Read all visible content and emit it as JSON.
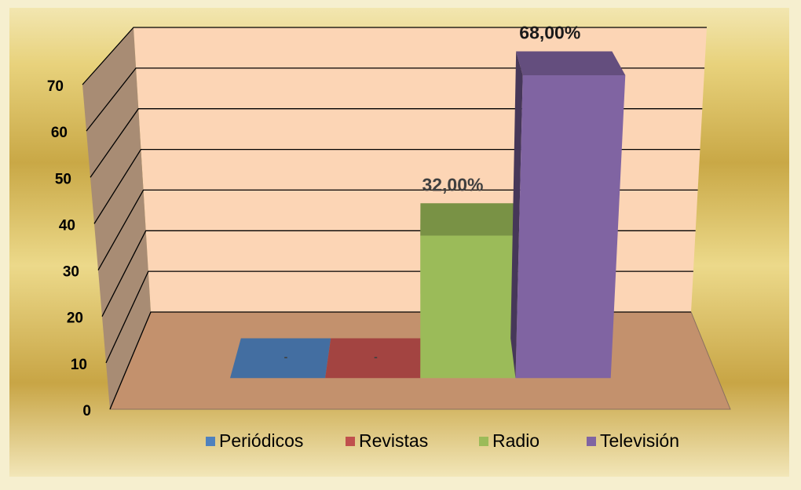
{
  "chart_data": {
    "type": "bar3d",
    "categories": [
      "Periódicos",
      "Revistas",
      "Radio",
      "Televisión"
    ],
    "values": [
      0,
      0,
      32,
      68
    ],
    "value_labels": [
      "-",
      "-",
      "32,00%",
      "68,00%"
    ],
    "colors": [
      "#4f81bd",
      "#c0504d",
      "#9bbb59",
      "#8064a2"
    ],
    "ylim": [
      0,
      70
    ],
    "yticks": [
      0,
      10,
      20,
      30,
      40,
      50,
      60,
      70
    ],
    "grid": true,
    "legend": "bottom"
  }
}
